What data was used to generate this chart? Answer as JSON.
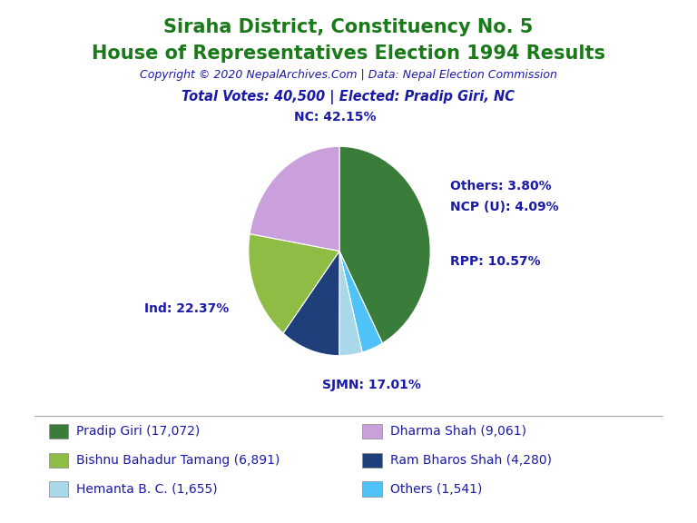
{
  "title_line1": "Siraha District, Constituency No. 5",
  "title_line2": "House of Representatives Election 1994 Results",
  "copyright": "Copyright © 2020 NepalArchives.Com | Data: Nepal Election Commission",
  "subtitle": "Total Votes: 40,500 | Elected: Pradip Giri, NC",
  "slices": [
    {
      "label": "NC",
      "pct": 42.15,
      "color": "#3a7d3a"
    },
    {
      "label": "Others",
      "pct": 3.8,
      "color": "#4fc3f7"
    },
    {
      "label": "NCP (U)",
      "pct": 4.09,
      "color": "#a8d8ea"
    },
    {
      "label": "RPP",
      "pct": 10.57,
      "color": "#1f3f7a"
    },
    {
      "label": "SJMN",
      "pct": 17.01,
      "color": "#8fbc45"
    },
    {
      "label": "Ind",
      "pct": 22.37,
      "color": "#c9a0dc"
    }
  ],
  "legend_items": [
    {
      "color": "#3a7d3a",
      "text": "Pradip Giri (17,072)"
    },
    {
      "color": "#c9a0dc",
      "text": "Dharma Shah (9,061)"
    },
    {
      "color": "#8fbc45",
      "text": "Bishnu Bahadur Tamang (6,891)"
    },
    {
      "color": "#1f3f7a",
      "text": "Ram Bharos Shah (4,280)"
    },
    {
      "color": "#a8d8ea",
      "text": "Hemanta B. C. (1,655)"
    },
    {
      "color": "#4fc3f7",
      "text": "Others (1,541)"
    }
  ],
  "title_color": "#1a7a1a",
  "subtitle_color": "#1a1aaa",
  "label_color": "#1a1aaa",
  "background_color": "#ffffff"
}
